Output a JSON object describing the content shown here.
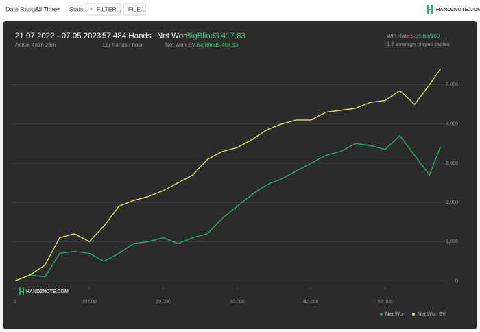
{
  "toolbar": {
    "date_range_label": "Date Range:",
    "date_range_value": "All Time",
    "stats_label": "Stats:",
    "filter_button": "FILTER...",
    "file_button": "FILE...",
    "logo": "HAND2NOTE.COM"
  },
  "summary": {
    "period": "21.07.2022 - 07.05.2023",
    "active": "Active 491h 23m",
    "hands": "57,484 Hands",
    "hands_rate": "117 hands / hour",
    "net_won_label": "Net Won:",
    "net_won_value": "BigBlind3,417.83",
    "net_won_ev_label": "Net Won  EV:",
    "net_won_ev_value": "BigBlind5,404.93",
    "win_rate_label": "Win Rate:",
    "win_rate_value": "5.95 bb/100",
    "tables": "1.8 average played tables"
  },
  "chart_data": {
    "type": "line",
    "watermark": "HAND2NOTE.COM",
    "x": [
      0,
      2000,
      4000,
      6000,
      8000,
      10000,
      12000,
      14000,
      16000,
      18000,
      20000,
      22000,
      24000,
      26000,
      28000,
      30000,
      32000,
      34000,
      36000,
      38000,
      40000,
      42000,
      44000,
      46000,
      48000,
      50000,
      52000,
      54000,
      56000,
      57484
    ],
    "series": [
      {
        "name": "Net Won",
        "color": "#27b36a",
        "values": [
          0,
          150,
          100,
          700,
          750,
          700,
          500,
          700,
          950,
          1000,
          1100,
          950,
          1100,
          1200,
          1600,
          1900,
          2200,
          2450,
          2600,
          2800,
          3000,
          3200,
          3300,
          3500,
          3450,
          3350,
          3700,
          3200,
          2700,
          3417.83
        ]
      },
      {
        "name": "Net Won  EV",
        "color": "#eef06a",
        "values": [
          0,
          150,
          400,
          1100,
          1200,
          1000,
          1400,
          1900,
          2050,
          2150,
          2300,
          2500,
          2700,
          3100,
          3300,
          3400,
          3600,
          3850,
          4000,
          4100,
          4100,
          4300,
          4350,
          4400,
          4550,
          4600,
          4850,
          4500,
          5000,
          5404.93
        ]
      }
    ],
    "xlim": [
      -400,
      58200
    ],
    "xticks": [
      0,
      {
        "value": 10000,
        "label": "10,000"
      },
      {
        "value": 20000,
        "label": "20,000"
      },
      {
        "value": 30000,
        "label": "30,000"
      },
      {
        "value": 40000,
        "label": "40,000"
      },
      {
        "value": 50000,
        "label": "50,000"
      }
    ],
    "ylim": [
      -150,
      5850
    ],
    "yticks": [
      0,
      {
        "value": 1000,
        "label": "1,000"
      },
      {
        "value": 2000,
        "label": "2,000"
      },
      {
        "value": 3000,
        "label": "3,000"
      },
      {
        "value": 4000,
        "label": "4,000"
      },
      {
        "value": 5000,
        "label": "5,000"
      }
    ],
    "grid": true,
    "legend": "bottom-right"
  }
}
